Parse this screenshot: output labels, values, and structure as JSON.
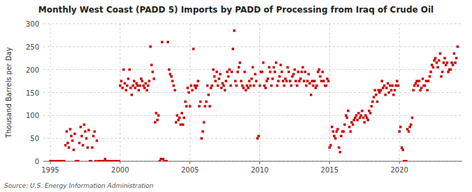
{
  "chart_data": {
    "type": "scatter",
    "title": "Monthly West Coast (PADD 5) Imports by PADD of Processing from Iraq of Crude Oil",
    "ylabel": "Thousand Barrels per Day",
    "annotations": [
      "Source: U.S. Energy Information Administration"
    ],
    "color": "#cc0000",
    "marker": "square",
    "grid": true,
    "xlim": [
      1994.5,
      2024.5
    ],
    "ylim": [
      0,
      300
    ],
    "xticks": [
      1995,
      2000,
      2005,
      2010,
      2015,
      2020
    ],
    "yticks": [
      0,
      50,
      100,
      150,
      200,
      250,
      300
    ],
    "x": [
      1995.0,
      1995.08,
      1995.17,
      1995.25,
      1995.33,
      1995.42,
      1995.5,
      1995.58,
      1995.67,
      1995.75,
      1995.83,
      1995.92,
      1996.0,
      1996.08,
      1996.17,
      1996.25,
      1996.33,
      1996.42,
      1996.5,
      1996.58,
      1996.67,
      1996.75,
      1996.83,
      1996.92,
      1997.0,
      1997.08,
      1997.17,
      1997.25,
      1997.33,
      1997.42,
      1997.5,
      1997.58,
      1997.67,
      1997.75,
      1997.83,
      1997.92,
      1998.0,
      1998.08,
      1998.17,
      1998.25,
      1998.33,
      1998.42,
      1998.5,
      1998.58,
      1998.67,
      1998.75,
      1998.83,
      1998.92,
      1999.0,
      1999.08,
      1999.17,
      1999.25,
      1999.33,
      1999.42,
      1999.5,
      1999.58,
      1999.67,
      1999.75,
      1999.83,
      1999.92,
      2000.0,
      2000.08,
      2000.17,
      2000.25,
      2000.33,
      2000.42,
      2000.5,
      2000.58,
      2000.67,
      2000.75,
      2000.83,
      2000.92,
      2001.0,
      2001.08,
      2001.17,
      2001.25,
      2001.33,
      2001.42,
      2001.5,
      2001.58,
      2001.67,
      2001.75,
      2001.83,
      2001.92,
      2002.0,
      2002.08,
      2002.17,
      2002.25,
      2002.33,
      2002.42,
      2002.5,
      2002.58,
      2002.67,
      2002.75,
      2002.83,
      2002.92,
      2003.0,
      2003.08,
      2003.17,
      2003.25,
      2003.33,
      2003.42,
      2003.5,
      2003.58,
      2003.67,
      2003.75,
      2003.83,
      2003.92,
      2004.0,
      2004.08,
      2004.17,
      2004.25,
      2004.33,
      2004.42,
      2004.5,
      2004.58,
      2004.67,
      2004.75,
      2004.83,
      2004.92,
      2005.0,
      2005.08,
      2005.17,
      2005.25,
      2005.33,
      2005.42,
      2005.5,
      2005.58,
      2005.67,
      2005.75,
      2005.83,
      2005.92,
      2006.0,
      2006.08,
      2006.17,
      2006.25,
      2006.33,
      2006.42,
      2006.5,
      2006.58,
      2006.67,
      2006.75,
      2006.83,
      2006.92,
      2007.0,
      2007.08,
      2007.17,
      2007.25,
      2007.33,
      2007.42,
      2007.5,
      2007.58,
      2007.67,
      2007.75,
      2007.83,
      2007.92,
      2008.0,
      2008.08,
      2008.17,
      2008.25,
      2008.33,
      2008.42,
      2008.5,
      2008.58,
      2008.67,
      2008.75,
      2008.83,
      2008.92,
      2009.0,
      2009.08,
      2009.17,
      2009.25,
      2009.33,
      2009.42,
      2009.5,
      2009.58,
      2009.67,
      2009.75,
      2009.83,
      2009.92,
      2010.0,
      2010.08,
      2010.17,
      2010.25,
      2010.33,
      2010.42,
      2010.5,
      2010.58,
      2010.67,
      2010.75,
      2010.83,
      2010.92,
      2011.0,
      2011.08,
      2011.17,
      2011.25,
      2011.33,
      2011.42,
      2011.5,
      2011.58,
      2011.67,
      2011.75,
      2011.83,
      2011.92,
      2012.0,
      2012.08,
      2012.17,
      2012.25,
      2012.33,
      2012.42,
      2012.5,
      2012.58,
      2012.67,
      2012.75,
      2012.83,
      2012.92,
      2013.0,
      2013.08,
      2013.17,
      2013.25,
      2013.33,
      2013.42,
      2013.5,
      2013.58,
      2013.67,
      2013.75,
      2013.83,
      2013.92,
      2014.0,
      2014.08,
      2014.17,
      2014.25,
      2014.33,
      2014.42,
      2014.5,
      2014.58,
      2014.67,
      2014.75,
      2014.83,
      2014.92,
      2015.0,
      2015.08,
      2015.17,
      2015.25,
      2015.33,
      2015.42,
      2015.5,
      2015.58,
      2015.67,
      2015.75,
      2015.83,
      2015.92,
      2016.0,
      2016.08,
      2016.17,
      2016.25,
      2016.33,
      2016.42,
      2016.5,
      2016.58,
      2016.67,
      2016.75,
      2016.83,
      2016.92,
      2017.0,
      2017.08,
      2017.17,
      2017.25,
      2017.33,
      2017.42,
      2017.5,
      2017.58,
      2017.67,
      2017.75,
      2017.83,
      2017.92,
      2018.0,
      2018.08,
      2018.17,
      2018.25,
      2018.33,
      2018.42,
      2018.5,
      2018.58,
      2018.67,
      2018.75,
      2018.83,
      2018.92,
      2019.0,
      2019.08,
      2019.17,
      2019.25,
      2019.33,
      2019.42,
      2019.5,
      2019.58,
      2019.67,
      2019.75,
      2019.83,
      2019.92,
      2020.0,
      2020.08,
      2020.17,
      2020.25,
      2020.33,
      2020.42,
      2020.5,
      2020.58,
      2020.67,
      2020.75,
      2020.83,
      2020.92,
      2021.0,
      2021.08,
      2021.17,
      2021.25,
      2021.33,
      2021.42,
      2021.5,
      2021.58,
      2021.67,
      2021.75,
      2021.83,
      2021.92,
      2022.0,
      2022.08,
      2022.17,
      2022.25,
      2022.33,
      2022.42,
      2022.5,
      2022.58,
      2022.67,
      2022.75,
      2022.83,
      2022.92,
      2023.0,
      2023.08,
      2023.17,
      2023.25,
      2023.33,
      2023.42,
      2023.5,
      2023.58,
      2023.67,
      2023.75,
      2023.83,
      2023.92,
      2024.0,
      2024.08,
      2024.17
    ],
    "values": [
      0,
      0,
      0,
      0,
      0,
      0,
      0,
      0,
      0,
      0,
      0,
      0,
      0,
      35,
      65,
      40,
      30,
      70,
      55,
      45,
      25,
      60,
      0,
      0,
      0,
      40,
      75,
      55,
      35,
      80,
      65,
      50,
      30,
      68,
      0,
      0,
      30,
      55,
      65,
      0,
      45,
      0,
      0,
      0,
      0,
      0,
      0,
      5,
      0,
      0,
      0,
      0,
      0,
      0,
      0,
      0,
      0,
      0,
      0,
      0,
      165,
      175,
      160,
      200,
      170,
      155,
      165,
      180,
      200,
      160,
      145,
      165,
      175,
      160,
      170,
      165,
      155,
      165,
      180,
      175,
      165,
      160,
      170,
      155,
      165,
      175,
      250,
      210,
      195,
      180,
      85,
      105,
      90,
      100,
      0,
      5,
      260,
      5,
      0,
      0,
      0,
      260,
      200,
      190,
      185,
      175,
      165,
      155,
      85,
      100,
      90,
      95,
      80,
      105,
      80,
      95,
      130,
      120,
      160,
      150,
      120,
      165,
      155,
      245,
      165,
      160,
      165,
      175,
      120,
      130,
      50,
      65,
      85,
      120,
      130,
      165,
      145,
      120,
      160,
      165,
      200,
      185,
      175,
      195,
      165,
      180,
      190,
      160,
      170,
      165,
      155,
      175,
      195,
      185,
      200,
      165,
      195,
      245,
      285,
      175,
      165,
      195,
      205,
      215,
      175,
      165,
      160,
      195,
      155,
      165,
      160,
      175,
      165,
      180,
      205,
      165,
      190,
      175,
      50,
      55,
      165,
      195,
      195,
      215,
      165,
      160,
      175,
      180,
      205,
      195,
      165,
      180,
      205,
      195,
      215,
      165,
      175,
      185,
      210,
      195,
      175,
      165,
      180,
      175,
      205,
      195,
      175,
      165,
      185,
      190,
      200,
      175,
      165,
      195,
      175,
      180,
      195,
      205,
      175,
      195,
      165,
      175,
      190,
      170,
      145,
      175,
      165,
      175,
      160,
      165,
      195,
      200,
      185,
      175,
      195,
      175,
      165,
      165,
      180,
      175,
      30,
      35,
      75,
      65,
      55,
      50,
      65,
      70,
      30,
      20,
      55,
      65,
      65,
      80,
      100,
      95,
      110,
      75,
      65,
      85,
      80,
      90,
      95,
      100,
      90,
      105,
      95,
      100,
      110,
      95,
      85,
      100,
      95,
      90,
      110,
      105,
      120,
      130,
      140,
      155,
      145,
      130,
      155,
      150,
      155,
      175,
      160,
      165,
      145,
      160,
      170,
      150,
      165,
      155,
      165,
      145,
      155,
      165,
      175,
      165,
      65,
      75,
      30,
      25,
      0,
      0,
      0,
      70,
      65,
      75,
      80,
      95,
      155,
      165,
      170,
      175,
      165,
      175,
      155,
      160,
      180,
      165,
      165,
      175,
      155,
      175,
      185,
      195,
      210,
      205,
      220,
      225,
      215,
      205,
      220,
      235,
      185,
      195,
      215,
      225,
      210,
      215,
      195,
      200,
      200,
      215,
      210,
      235,
      215,
      225,
      250
    ]
  }
}
